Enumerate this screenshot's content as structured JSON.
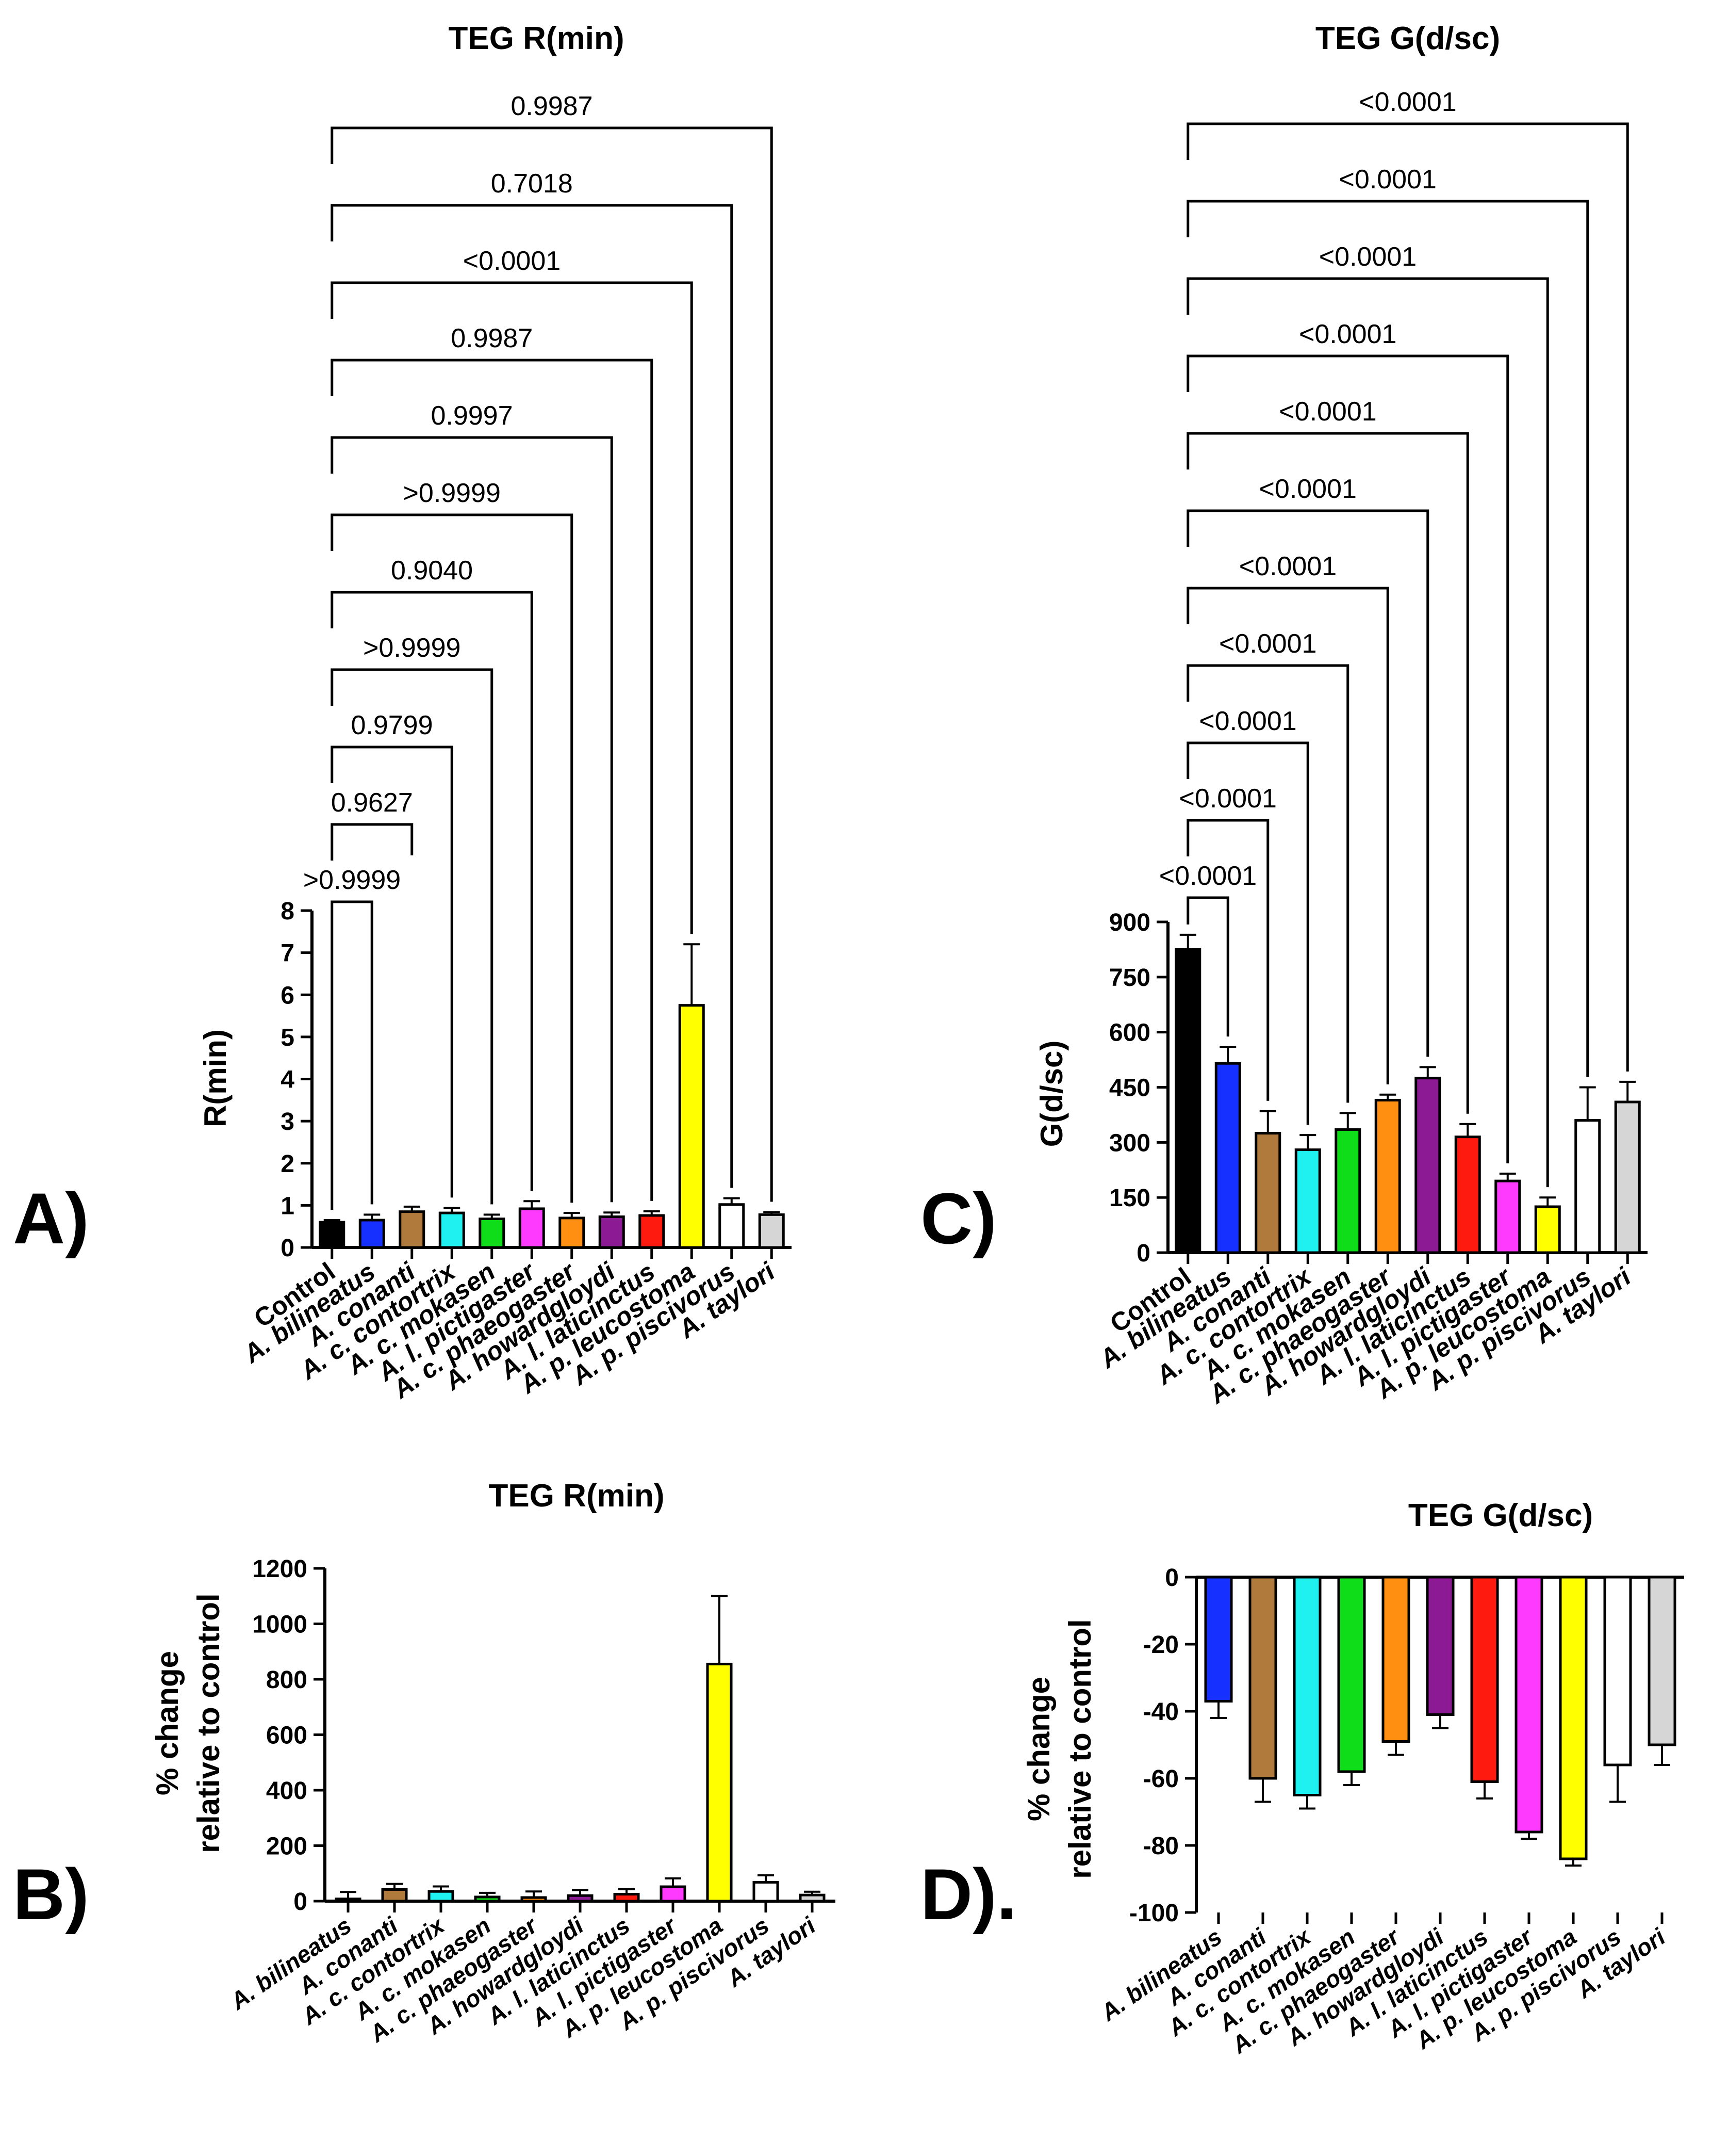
{
  "figure": {
    "panel_letters": {
      "A": "A)",
      "B": "B)",
      "C": "C)",
      "D": "D)."
    }
  },
  "colors": {
    "Control": "#000000",
    "A. bilineatus": "#1530ff",
    "A. conanti": "#b07a3c",
    "A. c. contortrix": "#1ff0f0",
    "A. c. mokasen": "#10dd1a",
    "A. c. phaeogaster": "#ff8f10",
    "A. howardgloydi": "#8b1a94",
    "A. l. laticinctus": "#ff1a10",
    "A. l. pictigaster": "#ff3aff",
    "A. p. leucostoma": "#ffff00",
    "A. p. piscivorus": "#ffffff",
    "A. taylori": "#d6d6d6"
  },
  "chart_data": [
    {
      "panel": "A",
      "type": "bar",
      "title": "TEG R(min)",
      "xlabel": "",
      "ylabel": "R(min)",
      "ylim": [
        0,
        8
      ],
      "yticks": [
        "0",
        "1",
        "2",
        "3",
        "4",
        "5",
        "6",
        "7",
        "8"
      ],
      "categories": [
        "Control",
        "A. bilineatus",
        "A. conanti",
        "A. c. contortrix",
        "A. c. mokasen",
        "A. l. pictigaster",
        "A. c. phaeogaster",
        "A. howardgloydi",
        "A. l. laticinctus",
        "A. p. leucostoma",
        "A. p. piscivorus",
        "A. taylori"
      ],
      "values": [
        0.6,
        0.65,
        0.85,
        0.82,
        0.68,
        0.92,
        0.7,
        0.73,
        0.76,
        5.75,
        1.02,
        0.78
      ],
      "errors": [
        0.05,
        0.13,
        0.12,
        0.12,
        0.1,
        0.18,
        0.12,
        0.1,
        0.1,
        1.45,
        0.15,
        0.06
      ],
      "comparisons": [
        {
          "to": "A. bilineatus",
          "p": ">0.9999"
        },
        {
          "to": "A. conanti",
          "p": "0.9627"
        },
        {
          "to": "A. c. contortrix",
          "p": "0.9799"
        },
        {
          "to": "A. c. mokasen",
          "p": ">0.9999"
        },
        {
          "to": "A. l. pictigaster",
          "p": "0.9040"
        },
        {
          "to": "A. c. phaeogaster",
          "p": ">0.9999"
        },
        {
          "to": "A. howardgloydi",
          "p": "0.9997"
        },
        {
          "to": "A. l. laticinctus",
          "p": "0.9987"
        },
        {
          "to": "A. p. leucostoma",
          "p": "<0.0001"
        },
        {
          "to": "A. p. piscivorus",
          "p": "0.7018"
        },
        {
          "to": "A. taylori",
          "p": "0.9987"
        }
      ]
    },
    {
      "panel": "B",
      "type": "bar",
      "title": "TEG R(min)",
      "xlabel": "",
      "ylabel": "% change relative to control",
      "ylabel_lines": [
        "% change",
        "relative to control"
      ],
      "ylim": [
        0,
        1200
      ],
      "yticks": [
        "0",
        "200",
        "400",
        "600",
        "800",
        "1000",
        "1200"
      ],
      "categories": [
        "A. bilineatus",
        "A. conanti",
        "A. c. contortrix",
        "A. c. mokasen",
        "A. c. phaeogaster",
        "A. howardgloydi",
        "A. l. laticinctus",
        "A. l. pictigaster",
        "A. p. leucostoma",
        "A. p. piscivorus",
        "A. taylori"
      ],
      "values": [
        8,
        42,
        35,
        15,
        13,
        20,
        25,
        52,
        855,
        68,
        22
      ],
      "errors": [
        25,
        20,
        18,
        15,
        22,
        20,
        18,
        30,
        245,
        25,
        12
      ]
    },
    {
      "panel": "C",
      "type": "bar",
      "title": "TEG G(d/sc)",
      "xlabel": "",
      "ylabel": "G(d/sc)",
      "ylim": [
        0,
        900
      ],
      "yticks": [
        "0",
        "150",
        "300",
        "450",
        "600",
        "750",
        "900"
      ],
      "categories": [
        "Control",
        "A. bilineatus",
        "A. conanti",
        "A. c. contortrix",
        "A. c. mokasen",
        "A. c. phaeogaster",
        "A. howardgloydi",
        "A. l. laticinctus",
        "A. l. pictigaster",
        "A. p. leucostoma",
        "A. p. piscivorus",
        "A. taylori"
      ],
      "values": [
        825,
        515,
        325,
        280,
        335,
        415,
        475,
        315,
        195,
        125,
        360,
        410
      ],
      "errors": [
        40,
        45,
        60,
        40,
        45,
        15,
        30,
        35,
        20,
        25,
        90,
        55
      ],
      "comparisons": [
        {
          "to": "A. bilineatus",
          "p": "<0.0001"
        },
        {
          "to": "A. conanti",
          "p": "<0.0001"
        },
        {
          "to": "A. c. contortrix",
          "p": "<0.0001"
        },
        {
          "to": "A. c. mokasen",
          "p": "<0.0001"
        },
        {
          "to": "A. c. phaeogaster",
          "p": "<0.0001"
        },
        {
          "to": "A. howardgloydi",
          "p": "<0.0001"
        },
        {
          "to": "A. l. laticinctus",
          "p": "<0.0001"
        },
        {
          "to": "A. l. pictigaster",
          "p": "<0.0001"
        },
        {
          "to": "A. p. leucostoma",
          "p": "<0.0001"
        },
        {
          "to": "A. p. piscivorus",
          "p": "<0.0001"
        },
        {
          "to": "A. taylori",
          "p": "<0.0001"
        }
      ]
    },
    {
      "panel": "D",
      "type": "bar",
      "title": "TEG G(d/sc)",
      "xlabel": "",
      "ylabel": "% change relative to control",
      "ylabel_lines": [
        "% change",
        "relative to control"
      ],
      "ylim": [
        -100,
        0
      ],
      "yticks": [
        "-100",
        "-80",
        "-60",
        "-40",
        "-20",
        "0"
      ],
      "categories": [
        "A. bilineatus",
        "A. conanti",
        "A. c. contortrix",
        "A. c. mokasen",
        "A. c. phaeogaster",
        "A. howardgloydi",
        "A. l. laticinctus",
        "A. l. pictigaster",
        "A. p. leucostoma",
        "A. p. piscivorus",
        "A. taylori"
      ],
      "values": [
        -37,
        -60,
        -65,
        -58,
        -49,
        -41,
        -61,
        -76,
        -84,
        -56,
        -50
      ],
      "errors": [
        5,
        7,
        4,
        4,
        4,
        4,
        5,
        2,
        2,
        11,
        6
      ]
    }
  ]
}
